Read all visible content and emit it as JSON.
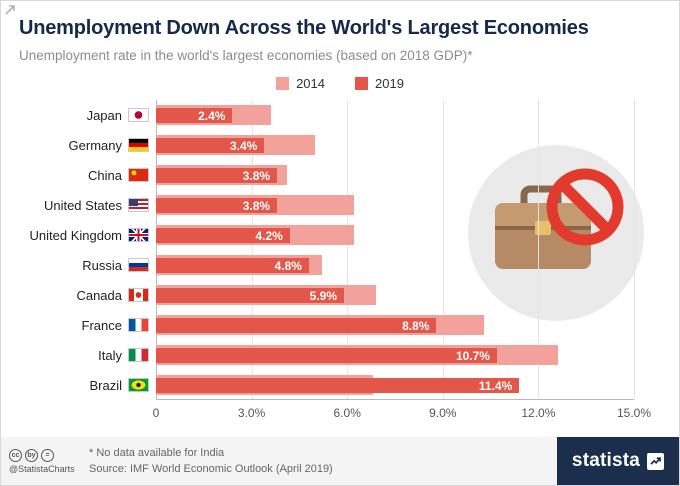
{
  "header": {
    "title": "Unemployment Down Across the World's Largest Economies",
    "subtitle": "Unemployment rate in the world's largest economies (based on 2018 GDP)*"
  },
  "legend": [
    {
      "label": "2014",
      "color": "#f2a29a"
    },
    {
      "label": "2019",
      "color": "#e2574a"
    }
  ],
  "colors": {
    "bar_2014": "#f2a29a",
    "bar_2019": "#e2574a",
    "navy": "#1b2e4c",
    "prohibition_red": "#e23b2e"
  },
  "chart_data": {
    "type": "bar",
    "orientation": "horizontal",
    "title": "Unemployment Down Across the World's Largest Economies",
    "subtitle": "Unemployment rate in the world's largest economies (based on 2018 GDP)*",
    "categories": [
      "Japan",
      "Germany",
      "China",
      "United States",
      "United Kingdom",
      "Russia",
      "Canada",
      "France",
      "Italy",
      "Brazil"
    ],
    "flags": [
      "japan",
      "germany",
      "china",
      "united-states",
      "united-kingdom",
      "russia",
      "canada",
      "france",
      "italy",
      "brazil"
    ],
    "series": [
      {
        "name": "2014",
        "values": [
          3.6,
          5.0,
          4.1,
          6.2,
          6.2,
          5.2,
          6.9,
          10.3,
          12.6,
          6.8
        ]
      },
      {
        "name": "2019",
        "values": [
          2.4,
          3.4,
          3.8,
          3.8,
          4.2,
          4.8,
          5.9,
          8.8,
          10.7,
          11.4
        ]
      }
    ],
    "value_labels": [
      "2.4%",
      "3.4%",
      "3.8%",
      "3.8%",
      "4.2%",
      "4.8%",
      "5.9%",
      "8.8%",
      "10.7%",
      "11.4%"
    ],
    "x_ticks": [
      "0",
      "3.0%",
      "6.0%",
      "9.0%",
      "12.0%",
      "15.0%"
    ],
    "tick_values": [
      0,
      3,
      6,
      9,
      12,
      15
    ],
    "xlim": [
      0,
      15
    ],
    "grid": "vertical",
    "legend_position": "top-center"
  },
  "footer": {
    "note": "* No data available for India",
    "source": "Source: IMF World Economic Outlook (April 2019)",
    "license_glyphs": [
      "cc",
      "by",
      "="
    ]
  },
  "bottombar": {
    "handle": "@StatistaCharts",
    "brand": "statista"
  },
  "icons": {
    "watermark": "no-hiring-briefcase-icon",
    "license": [
      "cc-icon",
      "cc-by-icon",
      "cc-nd-icon"
    ],
    "brand_logo": "statista-chart-arrow-icon",
    "corner": "expand-icon"
  }
}
